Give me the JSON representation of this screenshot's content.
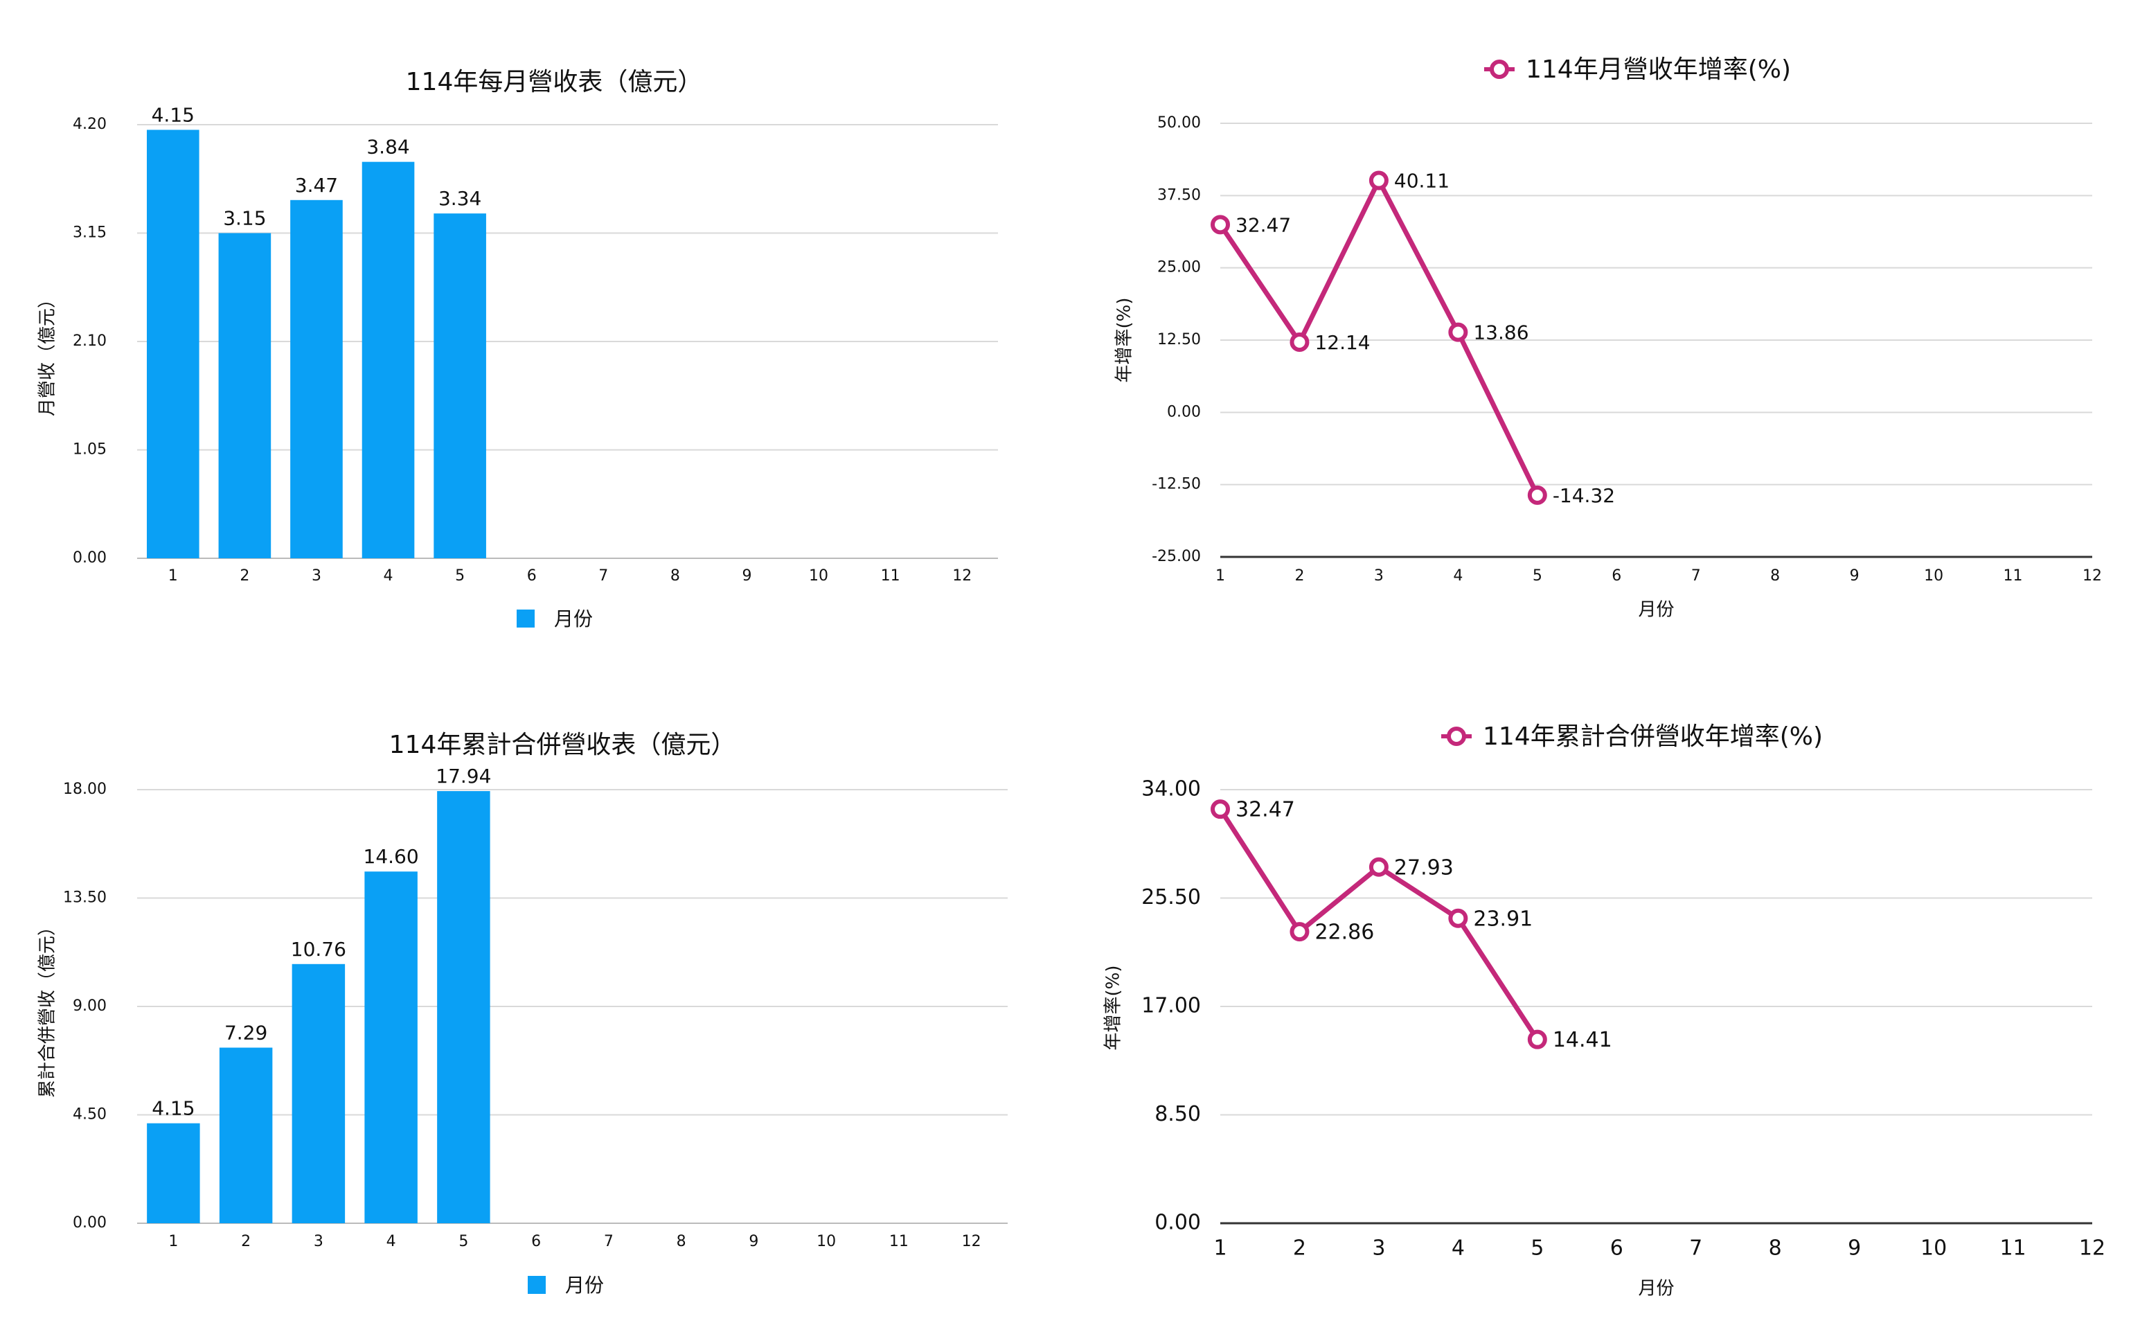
{
  "chart_data": [
    {
      "type": "bar",
      "title": "114年每月營收表（億元）",
      "y_label": "月營收（億元）",
      "categories": [
        "1",
        "2",
        "3",
        "4",
        "5",
        "6",
        "7",
        "8",
        "9",
        "10",
        "11",
        "12"
      ],
      "series": [
        {
          "name": "月份",
          "color": "#0aa0f5",
          "values": [
            4.15,
            3.15,
            3.47,
            3.84,
            3.34,
            null,
            null,
            null,
            null,
            null,
            null,
            null
          ],
          "value_labels": [
            "4.15",
            "3.15",
            "3.47",
            "3.84",
            "3.34",
            null,
            null,
            null,
            null,
            null,
            null,
            null
          ]
        }
      ],
      "ylim": [
        0,
        4.2
      ],
      "yticks": [
        {
          "value": 0,
          "label": "0.00"
        },
        {
          "value": 1.05,
          "label": "1.05"
        },
        {
          "value": 2.1,
          "label": "2.10"
        },
        {
          "value": 3.15,
          "label": "3.15"
        },
        {
          "value": 4.2,
          "label": "4.20"
        }
      ],
      "grid": true,
      "legend": "bottom"
    },
    {
      "type": "line",
      "y_label": "年增率(%)",
      "x_label": "月份",
      "categories": [
        "1",
        "2",
        "3",
        "4",
        "5",
        "6",
        "7",
        "8",
        "9",
        "10",
        "11",
        "12"
      ],
      "series": [
        {
          "name": "114年月營收年增率(%)",
          "color": "#c4287a",
          "values": [
            32.47,
            12.14,
            40.11,
            13.86,
            -14.32,
            null,
            null,
            null,
            null,
            null,
            null,
            null
          ]
        }
      ],
      "ylim": [
        -25,
        50
      ],
      "yticks": [
        {
          "value": -25,
          "label": "-25.00"
        },
        {
          "value": -12.5,
          "label": "-12.50"
        },
        {
          "value": 0,
          "label": "0.00"
        },
        {
          "value": 12.5,
          "label": "12.50"
        },
        {
          "value": 25,
          "label": "25.00"
        },
        {
          "value": 37.5,
          "label": "37.50"
        },
        {
          "value": 50,
          "label": "50.00"
        }
      ],
      "grid": true,
      "legend": "top"
    },
    {
      "type": "bar",
      "title": "114年累計合併營收表（億元）",
      "y_label": "累計合併營收（億元）",
      "categories": [
        "1",
        "2",
        "3",
        "4",
        "5",
        "6",
        "7",
        "8",
        "9",
        "10",
        "11",
        "12"
      ],
      "series": [
        {
          "name": "月份",
          "color": "#0aa0f5",
          "values": [
            4.15,
            7.29,
            10.76,
            14.6,
            17.94,
            null,
            null,
            null,
            null,
            null,
            null,
            null
          ],
          "value_labels": [
            "4.15",
            "7.29",
            "10.76",
            "14.60",
            "17.94",
            null,
            null,
            null,
            null,
            null,
            null,
            null
          ]
        }
      ],
      "ylim": [
        0,
        18
      ],
      "yticks": [
        {
          "value": 0,
          "label": "0.00"
        },
        {
          "value": 4.5,
          "label": "4.50"
        },
        {
          "value": 9,
          "label": "9.00"
        },
        {
          "value": 13.5,
          "label": "13.50"
        },
        {
          "value": 18,
          "label": "18.00"
        }
      ],
      "grid": true,
      "legend": "bottom"
    },
    {
      "type": "line",
      "y_label": "年增率(%)",
      "x_label": "月份",
      "categories": [
        "1",
        "2",
        "3",
        "4",
        "5",
        "6",
        "7",
        "8",
        "9",
        "10",
        "11",
        "12"
      ],
      "series": [
        {
          "name": "114年累計合併營收年增率(%)",
          "color": "#c4287a",
          "values": [
            32.47,
            22.86,
            27.93,
            23.91,
            14.41,
            null,
            null,
            null,
            null,
            null,
            null,
            null
          ]
        }
      ],
      "ylim": [
        0,
        34
      ],
      "yticks": [
        {
          "value": 0,
          "label": "0.00"
        },
        {
          "value": 8.5,
          "label": "8.50"
        },
        {
          "value": 17,
          "label": "17.00"
        },
        {
          "value": 25.5,
          "label": "25.50"
        },
        {
          "value": 34,
          "label": "34.00"
        }
      ],
      "grid": true,
      "legend": "top"
    }
  ]
}
